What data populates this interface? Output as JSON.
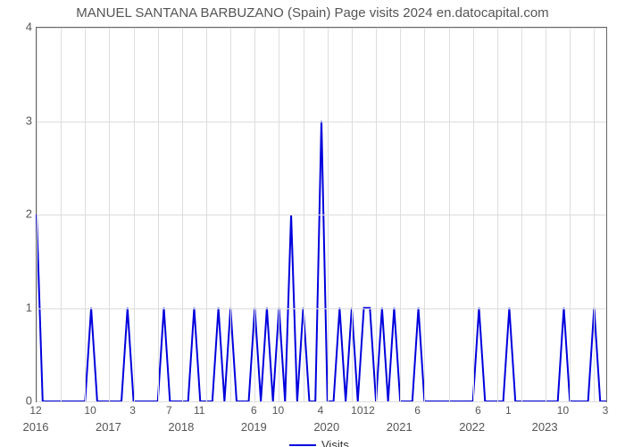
{
  "chart": {
    "type": "line",
    "title": "MANUEL SANTANA BARBUZANO (Spain) Page visits 2024 en.datocapital.com",
    "title_fontsize": 15,
    "title_color": "#555555",
    "background_color": "#ffffff",
    "plot_border_color": "#666666",
    "grid_color": "#dddddd",
    "tick_color": "#555555",
    "tick_fontsize": 13,
    "line_color": "#0000dd",
    "line_width": 2,
    "fill_color": "none",
    "ylim": [
      0,
      4
    ],
    "yticks": [
      0,
      1,
      2,
      3,
      4
    ],
    "major_x_labels": [
      "2016",
      "2017",
      "2018",
      "2019",
      "2020",
      "2021",
      "2022",
      "2023"
    ],
    "major_x_positions": [
      0,
      12,
      24,
      36,
      48,
      60,
      72,
      84
    ],
    "n_points": 95,
    "series": {
      "name": "Visits",
      "values": [
        2,
        0,
        0,
        0,
        0,
        0,
        0,
        0,
        0,
        1,
        0,
        0,
        0,
        0,
        0,
        1,
        0,
        0,
        0,
        0,
        0,
        1,
        0,
        0,
        0,
        0,
        1,
        0,
        0,
        0,
        1,
        0,
        1,
        0,
        0,
        0,
        1,
        0,
        1,
        0,
        1,
        0,
        2,
        0,
        1,
        0,
        0,
        3,
        0,
        0,
        1,
        0,
        1,
        0,
        1,
        1,
        0,
        1,
        0,
        1,
        0,
        0,
        0,
        1,
        0,
        0,
        0,
        0,
        0,
        0,
        0,
        0,
        0,
        1,
        0,
        0,
        0,
        0,
        1,
        0,
        0,
        0,
        0,
        0,
        0,
        0,
        0,
        1,
        0,
        0,
        0,
        0,
        1,
        0,
        0
      ]
    },
    "data_labels_top": [
      {
        "pos": 0,
        "text": "12"
      },
      {
        "pos": 9,
        "text": "10"
      },
      {
        "pos": 16,
        "text": "3"
      },
      {
        "pos": 22,
        "text": "7"
      },
      {
        "pos": 27,
        "text": "11"
      },
      {
        "pos": 36,
        "text": "6"
      },
      {
        "pos": 40,
        "text": "10"
      },
      {
        "pos": 47,
        "text": "4"
      },
      {
        "pos": 54,
        "text": "1012"
      },
      {
        "pos": 63,
        "text": "6"
      },
      {
        "pos": 73,
        "text": "6"
      },
      {
        "pos": 78,
        "text": "1"
      },
      {
        "pos": 87,
        "text": "10"
      },
      {
        "pos": 94,
        "text": "3"
      }
    ],
    "legend": {
      "label": "Visits",
      "position": "bottom-center"
    }
  }
}
